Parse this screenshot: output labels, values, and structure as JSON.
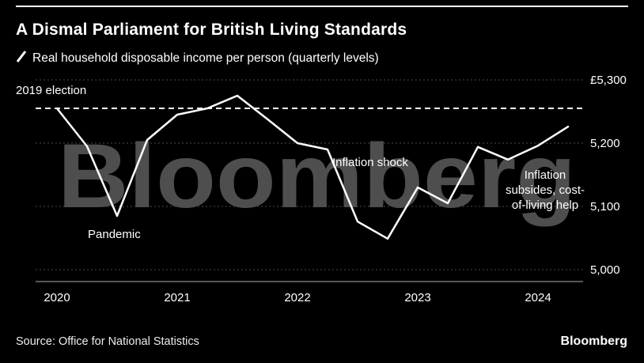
{
  "header": {
    "title": "A Dismal Parliament for British Living Standards",
    "legend_label": "Real household disposable income per person (quarterly levels)"
  },
  "colors": {
    "background": "#000000",
    "line": "#ffffff",
    "grid": "#4d4d4d",
    "watermark": "#4e4e4e",
    "axis": "#b0b0b0",
    "text": "#ffffff"
  },
  "watermark": "Bloomberg",
  "annotations": {
    "election": "2019 election",
    "pandemic": "Pandemic",
    "inflation_shock": "Inflation shock",
    "inflation_subsides": "Inflation subsides, cost-of-living help"
  },
  "footer": {
    "source": "Source: Office for National Statistics",
    "brand": "Bloomberg"
  },
  "chart_data": {
    "type": "line",
    "title": "A Dismal Parliament for British Living Standards",
    "series_name": "Real household disposable income per person (quarterly levels)",
    "unit": "GBP, quarterly level",
    "x": [
      "2020 Q1",
      "2020 Q2",
      "2020 Q3",
      "2020 Q4",
      "2021 Q1",
      "2021 Q2",
      "2021 Q3",
      "2021 Q4",
      "2022 Q1",
      "2022 Q2",
      "2022 Q3",
      "2022 Q4",
      "2023 Q1",
      "2023 Q2",
      "2023 Q3",
      "2023 Q4",
      "2024 Q1",
      "2024 Q2"
    ],
    "values": [
      5255,
      5195,
      5085,
      5205,
      5245,
      5255,
      5275,
      5238,
      5200,
      5190,
      5076,
      5049,
      5130,
      5105,
      5194,
      5174,
      5196,
      5226
    ],
    "reference_line": {
      "label": "2019 election",
      "value": 5255,
      "style": "dashed"
    },
    "y_ticks": [
      {
        "value": 5300,
        "label": "£5,300"
      },
      {
        "value": 5200,
        "label": "5,200"
      },
      {
        "value": 5100,
        "label": "5,100"
      },
      {
        "value": 5000,
        "label": "5,000"
      }
    ],
    "x_ticks": [
      "2020",
      "2021",
      "2022",
      "2023",
      "2024"
    ],
    "ylim": [
      4980,
      5320
    ],
    "grid": "dotted horizontal lines",
    "legend_position": "top-left",
    "annotations": [
      "2019 election",
      "Pandemic",
      "Inflation shock",
      "Inflation subsides, cost-of-living help"
    ]
  }
}
